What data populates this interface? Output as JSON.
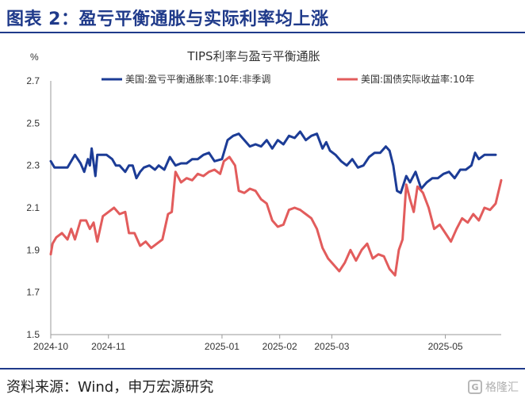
{
  "figure": {
    "title": "图表 2：盈亏平衡通胀与实际利率均上涨",
    "source": "资料来源：Wind，申万宏源研究",
    "watermark": "格隆汇"
  },
  "colors": {
    "accent": "#1f3a8a",
    "series_blue": "#1c3c96",
    "series_red": "#e25c5c"
  },
  "chart_data": {
    "type": "line",
    "title": "TIPS利率与盈亏平衡通胀",
    "ylabel": "%",
    "xlabel": "",
    "ylim": [
      1.5,
      2.7
    ],
    "yticks": [
      "1.5",
      "1.7",
      "1.9",
      "2.1",
      "2.3",
      "2.5",
      "2.7"
    ],
    "xrange": [
      "2024-10-01",
      "2025-05-31"
    ],
    "xticks": [
      "2024-10",
      "2024-11",
      "2025-01",
      "2025-02",
      "2025-03",
      "2025-05"
    ],
    "legend_position": "top",
    "series": [
      {
        "name": "美国:盈亏平衡通胀率:10年:非季调",
        "color": "#1c3c96",
        "points": [
          [
            "2024-10-01",
            2.32
          ],
          [
            "2024-10-03",
            2.29
          ],
          [
            "2024-10-07",
            2.29
          ],
          [
            "2024-10-10",
            2.29
          ],
          [
            "2024-10-12",
            2.32
          ],
          [
            "2024-10-14",
            2.35
          ],
          [
            "2024-10-17",
            2.31
          ],
          [
            "2024-10-19",
            2.27
          ],
          [
            "2024-10-21",
            2.33
          ],
          [
            "2024-10-22",
            2.3
          ],
          [
            "2024-10-23",
            2.38
          ],
          [
            "2024-10-25",
            2.25
          ],
          [
            "2024-10-26",
            2.35
          ],
          [
            "2024-10-28",
            2.35
          ],
          [
            "2024-10-31",
            2.35
          ],
          [
            "2024-11-03",
            2.33
          ],
          [
            "2024-11-05",
            2.3
          ],
          [
            "2024-11-07",
            2.3
          ],
          [
            "2024-11-10",
            2.27
          ],
          [
            "2024-11-12",
            2.3
          ],
          [
            "2024-11-14",
            2.3
          ],
          [
            "2024-11-16",
            2.24
          ],
          [
            "2024-11-18",
            2.27
          ],
          [
            "2024-11-20",
            2.29
          ],
          [
            "2024-11-23",
            2.3
          ],
          [
            "2024-11-26",
            2.28
          ],
          [
            "2024-11-28",
            2.3
          ],
          [
            "2024-12-01",
            2.28
          ],
          [
            "2024-12-04",
            2.34
          ],
          [
            "2024-12-07",
            2.3
          ],
          [
            "2024-12-10",
            2.31
          ],
          [
            "2024-12-13",
            2.31
          ],
          [
            "2024-12-16",
            2.33
          ],
          [
            "2024-12-19",
            2.33
          ],
          [
            "2024-12-22",
            2.35
          ],
          [
            "2024-12-25",
            2.36
          ],
          [
            "2024-12-28",
            2.32
          ],
          [
            "2025-01-01",
            2.33
          ],
          [
            "2025-01-04",
            2.42
          ],
          [
            "2025-01-07",
            2.44
          ],
          [
            "2025-01-10",
            2.45
          ],
          [
            "2025-01-13",
            2.42
          ],
          [
            "2025-01-16",
            2.39
          ],
          [
            "2025-01-19",
            2.4
          ],
          [
            "2025-01-22",
            2.39
          ],
          [
            "2025-01-25",
            2.42
          ],
          [
            "2025-01-28",
            2.38
          ],
          [
            "2025-01-31",
            2.42
          ],
          [
            "2025-02-03",
            2.4
          ],
          [
            "2025-02-06",
            2.44
          ],
          [
            "2025-02-09",
            2.43
          ],
          [
            "2025-02-12",
            2.46
          ],
          [
            "2025-02-15",
            2.42
          ],
          [
            "2025-02-18",
            2.44
          ],
          [
            "2025-02-21",
            2.45
          ],
          [
            "2025-02-24",
            2.38
          ],
          [
            "2025-02-26",
            2.41
          ],
          [
            "2025-02-28",
            2.37
          ],
          [
            "2025-03-03",
            2.35
          ],
          [
            "2025-03-06",
            2.32
          ],
          [
            "2025-03-09",
            2.3
          ],
          [
            "2025-03-12",
            2.33
          ],
          [
            "2025-03-15",
            2.29
          ],
          [
            "2025-03-18",
            2.3
          ],
          [
            "2025-03-21",
            2.34
          ],
          [
            "2025-03-24",
            2.36
          ],
          [
            "2025-03-27",
            2.36
          ],
          [
            "2025-03-30",
            2.39
          ],
          [
            "2025-04-01",
            2.37
          ],
          [
            "2025-04-03",
            2.3
          ],
          [
            "2025-04-05",
            2.18
          ],
          [
            "2025-04-07",
            2.17
          ],
          [
            "2025-04-10",
            2.25
          ],
          [
            "2025-04-12",
            2.22
          ],
          [
            "2025-04-15",
            2.27
          ],
          [
            "2025-04-18",
            2.19
          ],
          [
            "2025-04-21",
            2.22
          ],
          [
            "2025-04-24",
            2.24
          ],
          [
            "2025-04-27",
            2.24
          ],
          [
            "2025-04-30",
            2.26
          ],
          [
            "2025-05-03",
            2.27
          ],
          [
            "2025-05-06",
            2.24
          ],
          [
            "2025-05-09",
            2.28
          ],
          [
            "2025-05-12",
            2.28
          ],
          [
            "2025-05-15",
            2.3
          ],
          [
            "2025-05-17",
            2.36
          ],
          [
            "2025-05-19",
            2.33
          ],
          [
            "2025-05-22",
            2.35
          ],
          [
            "2025-05-25",
            2.35
          ],
          [
            "2025-05-28",
            2.35
          ]
        ]
      },
      {
        "name": "美国:国债实际收益率:10年",
        "color": "#e25c5c",
        "points": [
          [
            "2024-10-01",
            1.88
          ],
          [
            "2024-10-02",
            1.93
          ],
          [
            "2024-10-04",
            1.96
          ],
          [
            "2024-10-07",
            1.98
          ],
          [
            "2024-10-10",
            1.95
          ],
          [
            "2024-10-12",
            2.0
          ],
          [
            "2024-10-14",
            1.95
          ],
          [
            "2024-10-17",
            2.04
          ],
          [
            "2024-10-20",
            2.04
          ],
          [
            "2024-10-22",
            2.0
          ],
          [
            "2024-10-24",
            2.03
          ],
          [
            "2024-10-26",
            1.94
          ],
          [
            "2024-10-29",
            2.06
          ],
          [
            "2024-11-01",
            2.08
          ],
          [
            "2024-11-04",
            2.1
          ],
          [
            "2024-11-07",
            2.07
          ],
          [
            "2024-11-10",
            2.08
          ],
          [
            "2024-11-12",
            1.98
          ],
          [
            "2024-11-15",
            1.98
          ],
          [
            "2024-11-18",
            1.92
          ],
          [
            "2024-11-21",
            1.94
          ],
          [
            "2024-11-24",
            1.91
          ],
          [
            "2024-11-27",
            1.93
          ],
          [
            "2024-11-30",
            1.95
          ],
          [
            "2024-12-03",
            2.07
          ],
          [
            "2024-12-05",
            2.08
          ],
          [
            "2024-12-07",
            2.27
          ],
          [
            "2024-12-10",
            2.22
          ],
          [
            "2024-12-13",
            2.24
          ],
          [
            "2024-12-16",
            2.23
          ],
          [
            "2024-12-19",
            2.26
          ],
          [
            "2024-12-22",
            2.25
          ],
          [
            "2024-12-25",
            2.27
          ],
          [
            "2024-12-28",
            2.28
          ],
          [
            "2024-12-31",
            2.26
          ],
          [
            "2025-01-02",
            2.32
          ],
          [
            "2025-01-05",
            2.34
          ],
          [
            "2025-01-08",
            2.3
          ],
          [
            "2025-01-10",
            2.18
          ],
          [
            "2025-01-13",
            2.17
          ],
          [
            "2025-01-16",
            2.19
          ],
          [
            "2025-01-19",
            2.18
          ],
          [
            "2025-01-22",
            2.14
          ],
          [
            "2025-01-25",
            2.12
          ],
          [
            "2025-01-28",
            2.04
          ],
          [
            "2025-01-31",
            2.01
          ],
          [
            "2025-02-03",
            2.02
          ],
          [
            "2025-02-06",
            2.09
          ],
          [
            "2025-02-09",
            2.1
          ],
          [
            "2025-02-12",
            2.09
          ],
          [
            "2025-02-15",
            2.07
          ],
          [
            "2025-02-18",
            2.05
          ],
          [
            "2025-02-21",
            2.0
          ],
          [
            "2025-02-24",
            1.91
          ],
          [
            "2025-02-27",
            1.86
          ],
          [
            "2025-03-02",
            1.83
          ],
          [
            "2025-03-05",
            1.8
          ],
          [
            "2025-03-08",
            1.84
          ],
          [
            "2025-03-11",
            1.9
          ],
          [
            "2025-03-14",
            1.85
          ],
          [
            "2025-03-17",
            1.9
          ],
          [
            "2025-03-20",
            1.93
          ],
          [
            "2025-03-23",
            1.86
          ],
          [
            "2025-03-26",
            1.88
          ],
          [
            "2025-03-29",
            1.87
          ],
          [
            "2025-04-01",
            1.81
          ],
          [
            "2025-04-04",
            1.78
          ],
          [
            "2025-04-06",
            1.9
          ],
          [
            "2025-04-08",
            1.95
          ],
          [
            "2025-04-10",
            2.21
          ],
          [
            "2025-04-12",
            2.14
          ],
          [
            "2025-04-14",
            2.08
          ],
          [
            "2025-04-16",
            2.2
          ],
          [
            "2025-04-19",
            2.17
          ],
          [
            "2025-04-22",
            2.1
          ],
          [
            "2025-04-25",
            2.0
          ],
          [
            "2025-04-28",
            2.02
          ],
          [
            "2025-05-01",
            1.98
          ],
          [
            "2025-05-04",
            1.94
          ],
          [
            "2025-05-07",
            2.0
          ],
          [
            "2025-05-10",
            2.05
          ],
          [
            "2025-05-13",
            2.03
          ],
          [
            "2025-05-16",
            2.07
          ],
          [
            "2025-05-19",
            2.04
          ],
          [
            "2025-05-22",
            2.1
          ],
          [
            "2025-05-25",
            2.09
          ],
          [
            "2025-05-28",
            2.12
          ],
          [
            "2025-05-31",
            2.23
          ]
        ]
      }
    ]
  }
}
